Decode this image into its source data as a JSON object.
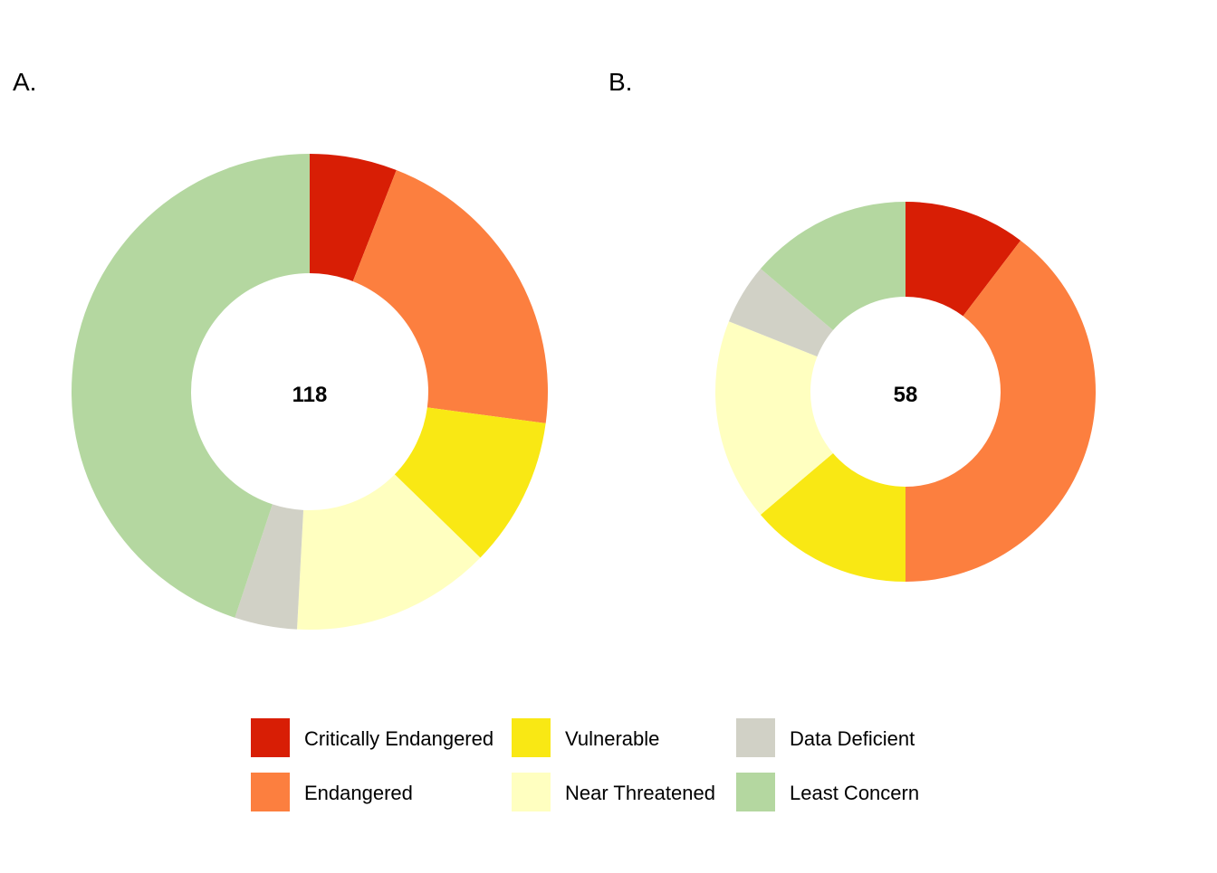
{
  "colors": {
    "Critically Endangered": "#d81e05",
    "Endangered": "#fc7f3f",
    "Vulnerable": "#f9e814",
    "Near Threatened": "#ffffc0",
    "Data Deficient": "#d1d1c6",
    "Least Concern": "#b4d7a0"
  },
  "chart_data": [
    {
      "type": "pie",
      "panel_label": "A.",
      "center_label": "118",
      "total": 118,
      "categories": [
        "Critically Endangered",
        "Endangered",
        "Vulnerable",
        "Near Threatened",
        "Data Deficient",
        "Least Concern"
      ],
      "values": [
        7,
        25,
        12,
        16,
        5,
        53
      ]
    },
    {
      "type": "pie",
      "panel_label": "B.",
      "center_label": "58",
      "total": 58,
      "categories": [
        "Critically Endangered",
        "Endangered",
        "Vulnerable",
        "Near Threatened",
        "Data Deficient",
        "Least Concern"
      ],
      "values": [
        6,
        23,
        8,
        10,
        3,
        8
      ]
    }
  ],
  "legend": {
    "entries": [
      "Critically Endangered",
      "Endangered",
      "Vulnerable",
      "Near Threatened",
      "Data Deficient",
      "Least Concern"
    ]
  }
}
